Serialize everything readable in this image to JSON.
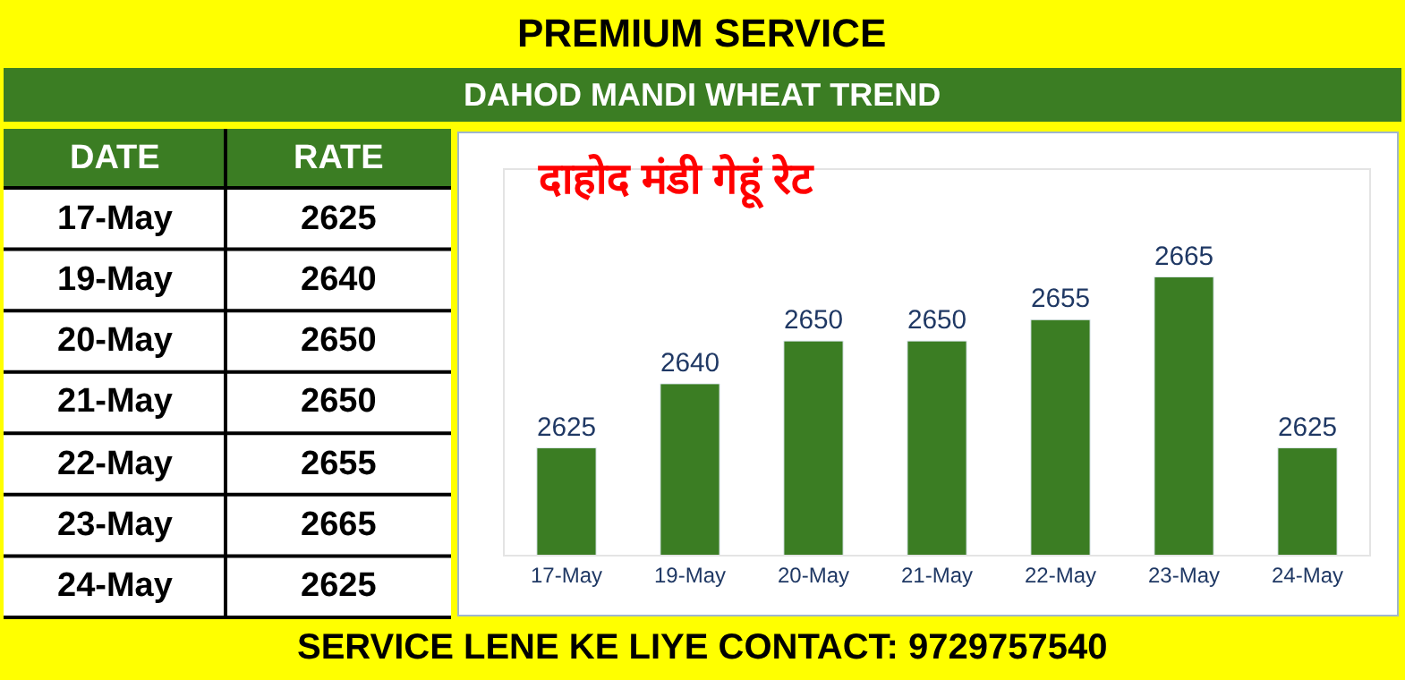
{
  "chart_data": [
    {
      "type": "bar",
      "title": "PREMIUM SERVICE",
      "subtitle": "DAHOD MANDI WHEAT TREND",
      "annotations": [
        "दाहोद मंडी गेहूं रेट",
        "SERVICE LENE KE LIYE CONTACT: 9729757540"
      ],
      "categories": [
        "17-May",
        "19-May",
        "20-May",
        "21-May",
        "22-May",
        "23-May",
        "24-May"
      ],
      "values": [
        2625,
        2640,
        2650,
        2650,
        2655,
        2665,
        2625
      ],
      "color": "#3b7d23",
      "ylim": [
        2600,
        2690
      ],
      "tick_labels": "x",
      "data_labels": true
    },
    {
      "type": "other",
      "annotations": [
        "DATE",
        "RATE"
      ],
      "categories": [
        "17-May",
        "19-May",
        "20-May",
        "21-May",
        "22-May",
        "23-May",
        "24-May"
      ],
      "values": [
        2625,
        2640,
        2650,
        2650,
        2655,
        2665,
        2625
      ],
      "data_labels": true
    }
  ]
}
